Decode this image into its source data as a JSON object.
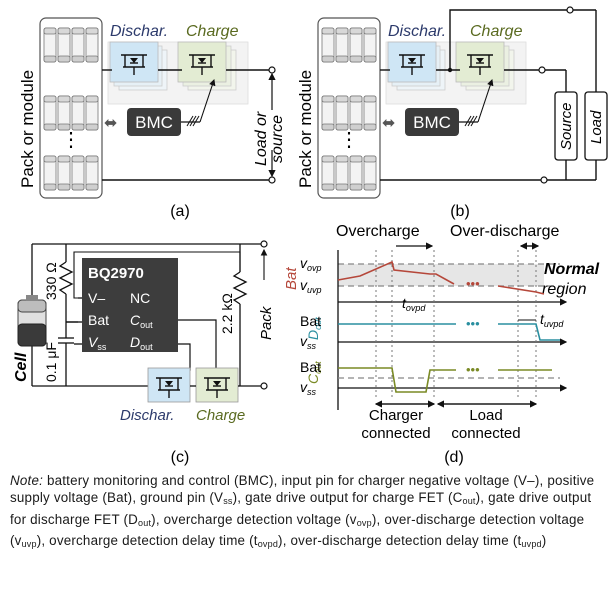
{
  "panel_a": {
    "label": "(a)",
    "dischar_label": "Dischar.",
    "charge_label": "Charge",
    "pack_label": "Pack or module",
    "bmc_label": "BMC",
    "load_source_line1": "Load or",
    "load_source_line2": "source",
    "dots": "⋮"
  },
  "panel_b": {
    "label": "(b)",
    "dischar_label": "Dischar.",
    "charge_label": "Charge",
    "pack_label": "Pack or module",
    "bmc_label": "BMC",
    "source_label": "Source",
    "load_label": "Load",
    "dots": "⋮"
  },
  "panel_c": {
    "label": "(c)",
    "chip_name": "BQ2970",
    "pin_vminus": "V–",
    "pin_nc": "NC",
    "pin_bat": "Bat",
    "pin_cout": "C",
    "pin_cout_sub": "out",
    "pin_vss": "V",
    "pin_vss_sub": "ss",
    "pin_dout": "D",
    "pin_dout_sub": "out",
    "resistor1": "330 Ω",
    "capacitor": "0.1 μF",
    "resistor2": "2.2 kΩ",
    "cell_label": "Cell",
    "pack_label": "Pack",
    "dischar_label": "Dischar.",
    "charge_label": "Charge"
  },
  "panel_d": {
    "label": "(d)",
    "overcharge": "Overcharge",
    "overdischarge": "Over-discharge",
    "normal_region_line1": "Normal",
    "normal_region_line2": "region",
    "bat_label": "Bat",
    "v_ovp": "v",
    "v_ovp_sub": "ovp",
    "v_uvp": "v",
    "v_uvp_sub": "uvp",
    "t_ovpd": "t",
    "t_ovpd_sub": "ovpd",
    "t_uvpd": "t",
    "t_uvpd_sub": "uvpd",
    "dout_label": "D",
    "dout_sub": "out",
    "cout_label": "C",
    "cout_sub": "out",
    "dout_bat": "Bat",
    "dout_vss": "v",
    "dout_vss_sub": "ss",
    "cout_bat": "Bat",
    "cout_vss": "v",
    "cout_vss_sub": "ss",
    "dots": "•••",
    "charger_line1": "Charger",
    "charger_line2": "connected",
    "load_line1": "Load",
    "load_line2": "connected"
  },
  "colors": {
    "dischar_fill": "#cfe6f5",
    "charge_fill": "#e3ecd3",
    "bmc_fill": "#3a3a3a",
    "bat_trace": "#b5473a",
    "dout_trace": "#2a8fa0",
    "cout_trace": "#7a8a25",
    "normal_band": "#e6e6e6",
    "dischar_text": "#2c3a6b",
    "charge_text": "#5a6a20"
  },
  "note": {
    "lead": "Note:",
    "text": "battery monitoring and control (BMC), input pin for charger negative voltage (V–), positive supply voltage (Bat), ground pin (V",
    "t1_sub": "ss",
    "text2": "), gate drive output for charge FET (C",
    "t2_sub": "out",
    "text3": "), gate drive output for discharge FET (D",
    "t3_sub": "out",
    "text4": "), overcharge detection voltage (v",
    "t4_sub": "ovp",
    "text5": "), over-discharge detection voltage (v",
    "t5_sub": "uvp",
    "text6": "), overcharge detection delay time (t",
    "t6_sub": "ovpd",
    "text7": "), over-discharge detection delay time (t",
    "t7_sub": "uvpd",
    "text8": ")"
  }
}
